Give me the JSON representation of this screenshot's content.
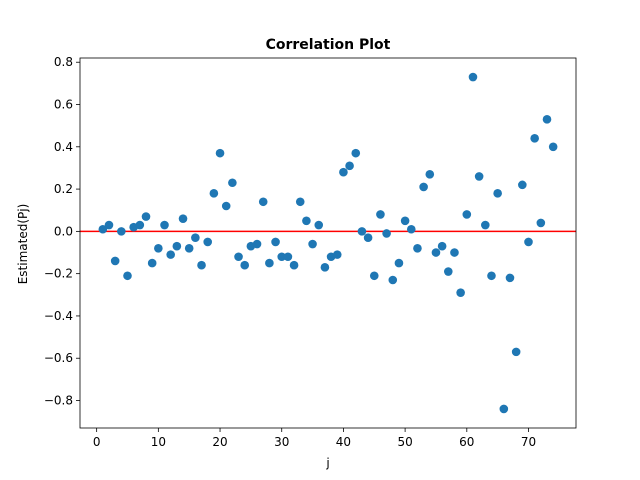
{
  "chart_data": {
    "type": "scatter",
    "title": "Correlation Plot",
    "xlabel": "j",
    "ylabel": "Estimated(Pj)",
    "xlim": [
      -2.7,
      77.7
    ],
    "ylim": [
      -0.93,
      0.82
    ],
    "xticks": [
      0,
      10,
      20,
      30,
      40,
      50,
      60,
      70
    ],
    "yticks": [
      -0.8,
      -0.6,
      -0.4,
      -0.2,
      0.0,
      0.2,
      0.4,
      0.6,
      0.8
    ],
    "xtick_labels": [
      "0",
      "10",
      "20",
      "30",
      "40",
      "50",
      "60",
      "70"
    ],
    "ytick_labels": [
      "−0.8",
      "−0.6",
      "−0.4",
      "−0.2",
      "0.0",
      "0.2",
      "0.4",
      "0.6",
      "0.8"
    ],
    "grid": false,
    "marker_color": "#1f77b4",
    "reference_line": {
      "y": 0.0,
      "color": "#ff0000"
    },
    "x": [
      1,
      2,
      3,
      4,
      5,
      6,
      7,
      8,
      9,
      10,
      11,
      12,
      13,
      14,
      15,
      16,
      17,
      18,
      19,
      20,
      21,
      22,
      23,
      24,
      25,
      26,
      27,
      28,
      29,
      30,
      31,
      32,
      33,
      34,
      35,
      36,
      37,
      38,
      39,
      40,
      41,
      42,
      43,
      44,
      45,
      46,
      47,
      48,
      49,
      50,
      51,
      52,
      53,
      54,
      55,
      56,
      57,
      58,
      59,
      60,
      61,
      62,
      63,
      64,
      65,
      66,
      67,
      68,
      69,
      70,
      71,
      72,
      73,
      74
    ],
    "y": [
      0.01,
      0.03,
      -0.14,
      0.0,
      -0.21,
      0.02,
      0.03,
      0.07,
      -0.15,
      -0.08,
      0.03,
      -0.11,
      -0.07,
      0.06,
      -0.08,
      -0.03,
      -0.16,
      -0.05,
      0.18,
      0.37,
      0.12,
      0.23,
      -0.12,
      -0.16,
      -0.07,
      -0.06,
      0.14,
      -0.15,
      -0.05,
      -0.12,
      -0.12,
      -0.16,
      0.14,
      0.05,
      -0.06,
      0.03,
      -0.17,
      -0.12,
      -0.11,
      0.28,
      0.31,
      0.37,
      0.0,
      -0.03,
      -0.21,
      0.08,
      -0.01,
      -0.23,
      -0.15,
      0.05,
      0.01,
      -0.08,
      0.21,
      0.27,
      -0.1,
      -0.07,
      -0.19,
      -0.1,
      -0.29,
      0.08,
      0.73,
      0.26,
      0.03,
      -0.21,
      0.18,
      -0.84,
      -0.22,
      -0.57,
      0.22,
      -0.05,
      0.44,
      0.04,
      0.53,
      0.4
    ]
  }
}
